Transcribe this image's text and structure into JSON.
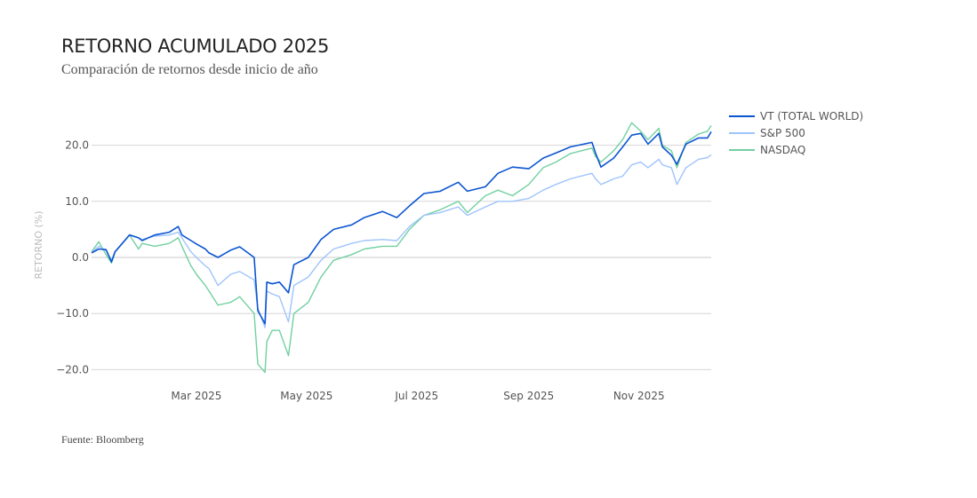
{
  "title": "RETORNO ACUMULADO 2025",
  "subtitle": "Comparación de retornos desde inicio de año",
  "source": "Fuente: Bloomberg",
  "chart_data": {
    "type": "line",
    "title": "RETORNO ACUMULADO 2025",
    "subtitle": "Comparación de retornos desde inicio de año",
    "xlabel": "",
    "ylabel": "RETORNO (%)",
    "xlim": [
      "2025-01-02",
      "2025-12-11"
    ],
    "ylim": [
      -22,
      26
    ],
    "grid": true,
    "legend_position": "top-right",
    "x_ticks": [
      {
        "date": "2025-03-01",
        "label": "Mar 2025"
      },
      {
        "date": "2025-05-01",
        "label": "May 2025"
      },
      {
        "date": "2025-07-01",
        "label": "Jul 2025"
      },
      {
        "date": "2025-09-01",
        "label": "Sep 2025"
      },
      {
        "date": "2025-11-01",
        "label": "Nov 2025"
      }
    ],
    "y_ticks": [
      {
        "value": 20,
        "label": "20.0"
      },
      {
        "value": 10,
        "label": "10.0"
      },
      {
        "value": 0,
        "label": "0.0"
      },
      {
        "value": -10,
        "label": "−10.0"
      },
      {
        "value": -20,
        "label": "−20.0"
      }
    ],
    "x": [
      "2025-01-02",
      "2025-01-06",
      "2025-01-10",
      "2025-01-13",
      "2025-01-15",
      "2025-01-23",
      "2025-01-28",
      "2025-01-30",
      "2025-02-06",
      "2025-02-14",
      "2025-02-19",
      "2025-02-21",
      "2025-02-26",
      "2025-03-01",
      "2025-03-06",
      "2025-03-08",
      "2025-03-13",
      "2025-03-20",
      "2025-03-25",
      "2025-04-02",
      "2025-04-04",
      "2025-04-08",
      "2025-04-09",
      "2025-04-12",
      "2025-04-16",
      "2025-04-21",
      "2025-04-24",
      "2025-05-02",
      "2025-05-09",
      "2025-05-16",
      "2025-05-26",
      "2025-06-02",
      "2025-06-12",
      "2025-06-20",
      "2025-06-27",
      "2025-07-05",
      "2025-07-14",
      "2025-07-24",
      "2025-07-29",
      "2025-08-08",
      "2025-08-15",
      "2025-08-23",
      "2025-09-01",
      "2025-09-09",
      "2025-09-16",
      "2025-09-24",
      "2025-10-06",
      "2025-10-08",
      "2025-10-11",
      "2025-10-18",
      "2025-10-23",
      "2025-10-28",
      "2025-11-02",
      "2025-11-06",
      "2025-11-12",
      "2025-11-14",
      "2025-11-19",
      "2025-11-22",
      "2025-11-27",
      "2025-12-04",
      "2025-12-09",
      "2025-12-11"
    ],
    "series": [
      {
        "name": "VT (TOTAL WORLD)",
        "color": "#0b55d1",
        "values": [
          0.8,
          1.5,
          1.4,
          -0.8,
          1,
          4,
          3.5,
          3,
          4,
          4.5,
          5.5,
          4,
          3,
          2.4,
          1.5,
          0.8,
          0,
          1.3,
          1.9,
          0,
          -9.5,
          -11.8,
          -4.4,
          -4.7,
          -4.4,
          -6.3,
          -1.3,
          0,
          3.2,
          5,
          5.8,
          7.1,
          8.2,
          7.1,
          9.2,
          11.4,
          11.8,
          13.4,
          11.8,
          12.6,
          15,
          16.1,
          15.8,
          17.7,
          18.6,
          19.7,
          20.5,
          18.6,
          16.1,
          17.7,
          19.7,
          21.8,
          22.1,
          20.2,
          22.1,
          19.7,
          18.2,
          16.6,
          20.2,
          21.3,
          21.3,
          22.4
        ]
      },
      {
        "name": "S&P 500",
        "color": "#9fc4fb",
        "values": [
          0.8,
          2,
          1.2,
          -0.5,
          1,
          4,
          3.5,
          3.2,
          3.8,
          4,
          4.5,
          3.5,
          1,
          0,
          -1.5,
          -2,
          -5,
          -3,
          -2.5,
          -4,
          -9,
          -12.5,
          -6,
          -6.5,
          -7,
          -11.5,
          -5,
          -3.5,
          -0.5,
          1.5,
          2.5,
          3,
          3.2,
          3,
          5.5,
          7.5,
          8,
          9,
          7.5,
          9,
          10,
          10,
          10.5,
          12,
          13,
          14,
          15,
          14,
          13,
          14,
          14.5,
          16.5,
          17,
          16,
          17.5,
          16.5,
          16,
          13,
          16,
          17.5,
          17.8,
          18.3
        ]
      },
      {
        "name": "NASDAQ",
        "color": "#72d0a0",
        "values": [
          1,
          2.8,
          0.5,
          -1,
          1,
          4,
          1.5,
          2.5,
          2,
          2.5,
          3.5,
          2,
          -1.5,
          -3,
          -5,
          -6,
          -8.5,
          -8,
          -7,
          -10,
          -19,
          -20.5,
          -15,
          -13,
          -13,
          -17.5,
          -10,
          -8,
          -3.5,
          -0.5,
          0.5,
          1.5,
          2,
          2,
          5,
          7.5,
          8.5,
          10,
          8,
          11,
          12,
          11,
          13,
          16,
          17,
          18.5,
          19.5,
          18,
          17,
          19,
          21,
          24,
          22.5,
          21,
          23,
          20,
          19,
          16,
          20.5,
          22,
          22.5,
          23.5
        ]
      }
    ]
  }
}
